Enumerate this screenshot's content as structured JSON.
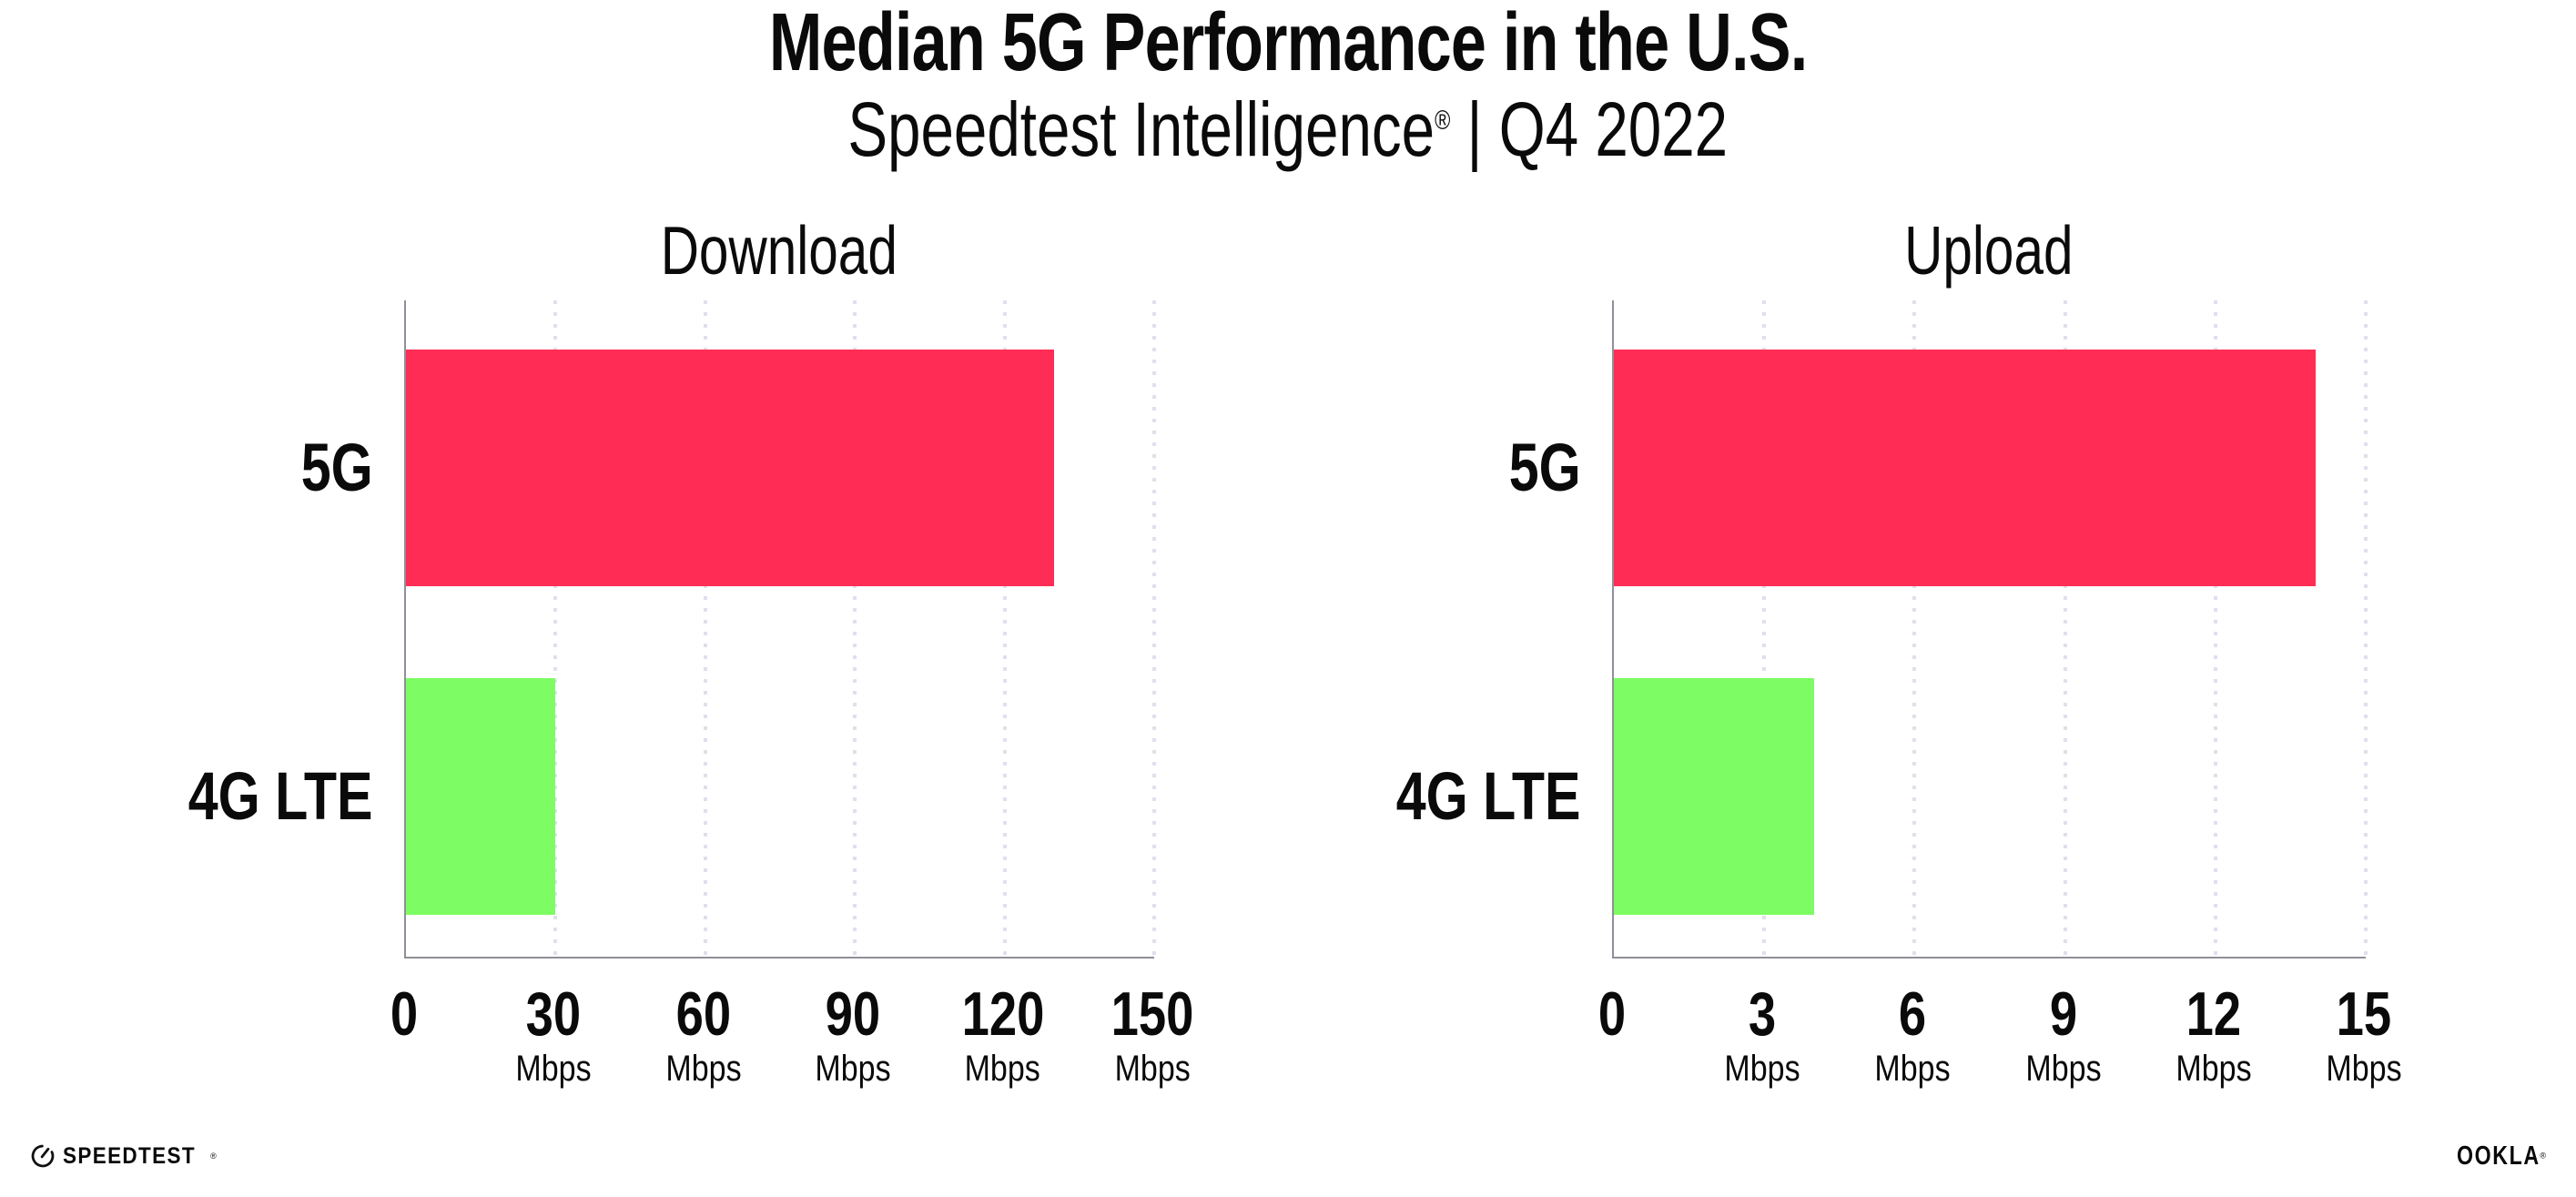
{
  "header": {
    "title": "Median 5G Performance in the U.S.",
    "subtitle": "Speedtest Intelligence",
    "subtitle_mark": "®",
    "subtitle_rest": " | Q4 2022"
  },
  "chart_data": [
    {
      "type": "bar",
      "orientation": "horizontal",
      "title": "Download",
      "categories": [
        "5G",
        "4G LTE"
      ],
      "values": [
        130,
        30
      ],
      "unit": "Mbps",
      "xlabel": "",
      "ylabel": "",
      "xlim": [
        0,
        150
      ],
      "xticks": [
        0,
        30,
        60,
        90,
        120,
        150
      ],
      "bar_colors": [
        "#FF2D55",
        "#7DFD63"
      ],
      "grid": "vertical-dotted",
      "legend": "none"
    },
    {
      "type": "bar",
      "orientation": "horizontal",
      "title": "Upload",
      "categories": [
        "5G",
        "4G LTE"
      ],
      "values": [
        14,
        4
      ],
      "unit": "Mbps",
      "xlabel": "",
      "ylabel": "",
      "xlim": [
        0,
        15
      ],
      "xticks": [
        0,
        3,
        6,
        9,
        12,
        15
      ],
      "bar_colors": [
        "#FF2D55",
        "#7DFD63"
      ],
      "grid": "vertical-dotted",
      "legend": "none"
    }
  ],
  "footer": {
    "speedtest": "SPEEDTEST",
    "speedtest_mark": "®",
    "speedtest_icon": "gauge-icon",
    "ookla": "OOKLA",
    "ookla_mark": "®"
  },
  "colors": {
    "bar_5g": "#FF2D55",
    "bar_4g_lte": "#7DFD63",
    "axis": "#8F8F9A",
    "gridline": "#DFE0EC",
    "text": "#0A0A0B"
  }
}
